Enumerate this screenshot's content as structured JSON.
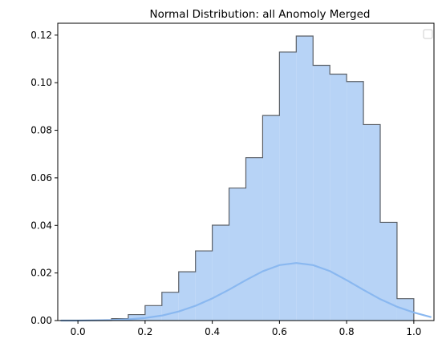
{
  "chart_data": {
    "type": "bar",
    "title": "Normal Distribution: all Anomoly Merged",
    "xlabel": "",
    "ylabel": "",
    "xlim": [
      -0.06,
      1.06
    ],
    "ylim": [
      0,
      0.125
    ],
    "x_ticks": [
      0.0,
      0.2,
      0.4,
      0.6,
      0.8,
      1.0
    ],
    "x_tick_labels": [
      "0.0",
      "0.2",
      "0.4",
      "0.6",
      "0.8",
      "1.0"
    ],
    "y_ticks": [
      0.0,
      0.02,
      0.04,
      0.06,
      0.08,
      0.1,
      0.12
    ],
    "y_tick_labels": [
      "0.00",
      "0.02",
      "0.04",
      "0.06",
      "0.08",
      "0.10",
      "0.12"
    ],
    "grid": false,
    "legend": {
      "placement": "upper-right",
      "entries": []
    },
    "histogram": {
      "bin_edges": [
        0.0,
        0.05,
        0.1,
        0.15,
        0.2,
        0.25,
        0.3,
        0.35,
        0.4,
        0.45,
        0.5,
        0.55,
        0.6,
        0.65,
        0.7,
        0.75,
        0.8,
        0.85,
        0.9,
        0.95,
        1.0
      ],
      "values": [
        0.0,
        0.0,
        0.0008,
        0.0025,
        0.0063,
        0.0119,
        0.0205,
        0.0293,
        0.0401,
        0.0557,
        0.0685,
        0.0862,
        0.1129,
        0.1196,
        0.1073,
        0.1036,
        0.1005,
        0.0824,
        0.0413,
        0.0092
      ],
      "fill_color": "#b7d3f6",
      "edge_color": "#5a5f66"
    },
    "curve": {
      "type": "line",
      "x": [
        -0.05,
        0.0,
        0.05,
        0.1,
        0.15,
        0.2,
        0.25,
        0.3,
        0.35,
        0.4,
        0.45,
        0.5,
        0.55,
        0.6,
        0.65,
        0.7,
        0.75,
        0.8,
        0.85,
        0.9,
        0.95,
        1.0,
        1.05
      ],
      "y": [
        0.0,
        0.0,
        0.0001,
        0.0002,
        0.0005,
        0.0011,
        0.0021,
        0.0038,
        0.0062,
        0.0093,
        0.013,
        0.017,
        0.0207,
        0.0233,
        0.0242,
        0.0233,
        0.0208,
        0.017,
        0.0129,
        0.009,
        0.0058,
        0.0034,
        0.0015
      ],
      "color": "#8ab8f0"
    }
  }
}
